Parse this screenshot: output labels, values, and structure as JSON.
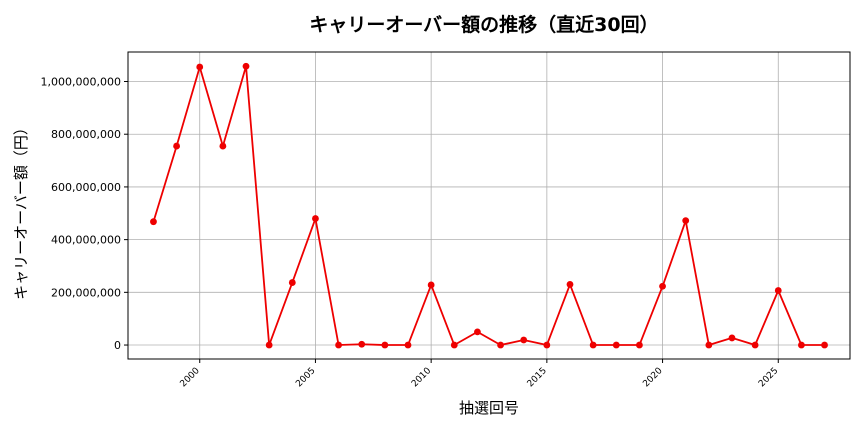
{
  "chart_data": {
    "type": "line",
    "title": "キャリーオーバー額の推移（直近30回）",
    "xlabel": "抽選回号",
    "ylabel": "キャリーオーバー額（円）",
    "x_ticks": [
      2000,
      2005,
      2010,
      2015,
      2020,
      2025
    ],
    "y_ticks": [
      0,
      200000000,
      400000000,
      600000000,
      800000000,
      1000000000
    ],
    "y_tick_labels": [
      "0",
      "200,000,000",
      "400,000,000",
      "600,000,000",
      "800,000,000",
      "1,000,000,000"
    ],
    "xlim": [
      1996.9,
      2028.1
    ],
    "ylim": [
      -53000000,
      1112000000
    ],
    "grid": true,
    "series": [
      {
        "color": "#ee0000",
        "marker": "circle",
        "x": [
          1998,
          1999,
          2000,
          2001,
          2002,
          2003,
          2004,
          2005,
          2006,
          2007,
          2008,
          2009,
          2010,
          2011,
          2012,
          2013,
          2014,
          2015,
          2016,
          2017,
          2018,
          2019,
          2020,
          2021,
          2022,
          2023,
          2024,
          2025,
          2026,
          2027
        ],
        "y": [
          468000000,
          755000000,
          1055000000,
          755000000,
          1058000000,
          0,
          237000000,
          480000000,
          0,
          3000000,
          0,
          0,
          228000000,
          0,
          50000000,
          0,
          19000000,
          0,
          230000000,
          0,
          0,
          0,
          223000000,
          472000000,
          0,
          27000000,
          0,
          207000000,
          0,
          0
        ]
      }
    ]
  }
}
